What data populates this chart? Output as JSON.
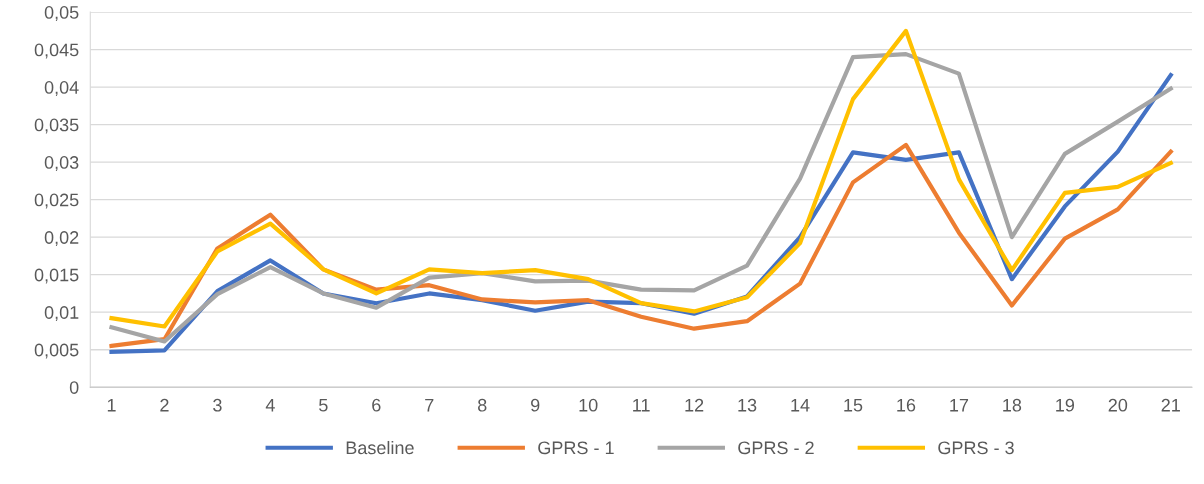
{
  "chart_data": {
    "type": "line",
    "categories": [
      "1",
      "2",
      "3",
      "4",
      "5",
      "6",
      "7",
      "8",
      "9",
      "10",
      "11",
      "12",
      "13",
      "14",
      "15",
      "16",
      "17",
      "18",
      "19",
      "20",
      "21"
    ],
    "series": [
      {
        "name": "Baseline",
        "color": "#4472c4",
        "values": [
          0.0047,
          0.0049,
          0.0128,
          0.0169,
          0.0125,
          0.0112,
          0.0125,
          0.0116,
          0.0102,
          0.0114,
          0.0112,
          0.0098,
          0.0121,
          0.02,
          0.0313,
          0.0303,
          0.0313,
          0.0144,
          0.0241,
          0.0314,
          0.0416
        ]
      },
      {
        "name": "GPRS - 1",
        "color": "#ed7d31",
        "values": [
          0.0055,
          0.0064,
          0.0185,
          0.023,
          0.0157,
          0.013,
          0.0136,
          0.0117,
          0.0113,
          0.0116,
          0.0094,
          0.0078,
          0.0088,
          0.0138,
          0.0273,
          0.0323,
          0.0206,
          0.0109,
          0.0198,
          0.0237,
          0.0314
        ]
      },
      {
        "name": "GPRS - 2",
        "color": "#a5a5a5",
        "values": [
          0.008,
          0.0061,
          0.0124,
          0.016,
          0.0125,
          0.0106,
          0.0146,
          0.0152,
          0.0141,
          0.0142,
          0.013,
          0.0129,
          0.0162,
          0.0278,
          0.044,
          0.0444,
          0.0418,
          0.02,
          0.0311,
          0.0354,
          0.0398
        ]
      },
      {
        "name": "GPRS - 3",
        "color": "#ffc000",
        "values": [
          0.0092,
          0.0081,
          0.0181,
          0.0218,
          0.0157,
          0.0125,
          0.0157,
          0.0152,
          0.0156,
          0.0144,
          0.0112,
          0.0101,
          0.012,
          0.0192,
          0.0384,
          0.0475,
          0.0277,
          0.0156,
          0.0259,
          0.0267,
          0.0299
        ]
      }
    ],
    "ylim": [
      0,
      0.05
    ],
    "yticks": [
      {
        "value": 0,
        "label": "0"
      },
      {
        "value": 0.005,
        "label": "0,005"
      },
      {
        "value": 0.01,
        "label": "0,01"
      },
      {
        "value": 0.015,
        "label": "0,015"
      },
      {
        "value": 0.02,
        "label": "0,02"
      },
      {
        "value": 0.025,
        "label": "0,025"
      },
      {
        "value": 0.03,
        "label": "0,03"
      },
      {
        "value": 0.035,
        "label": "0,035"
      },
      {
        "value": 0.04,
        "label": "0,04"
      },
      {
        "value": 0.045,
        "label": "0,045"
      },
      {
        "value": 0.05,
        "label": "0,05"
      }
    ],
    "grid": "y",
    "legend": "bottom",
    "marker": "none",
    "line_style": "solid"
  }
}
